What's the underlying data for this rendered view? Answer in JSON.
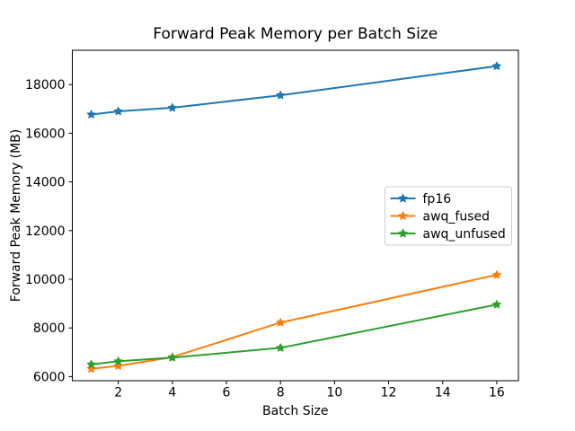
{
  "window": {
    "background": "#ffffff",
    "frame_color": "#000000",
    "text_color": "#000000"
  },
  "chart_data": {
    "type": "line",
    "title": "Forward Peak Memory per Batch Size",
    "xlabel": "Batch Size",
    "ylabel": "Forward Peak Memory (MB)",
    "x": [
      1,
      2,
      4,
      8,
      16
    ],
    "series": [
      {
        "name": "fp16",
        "color": "#1f77b4",
        "values": [
          16770,
          16900,
          17050,
          17560,
          18760
        ]
      },
      {
        "name": "awq_fused",
        "color": "#ff7f0e",
        "values": [
          6320,
          6440,
          6800,
          8220,
          10180
        ]
      },
      {
        "name": "awq_unfused",
        "color": "#2ca02c",
        "values": [
          6500,
          6630,
          6780,
          7180,
          8960
        ]
      }
    ],
    "marker": "star",
    "grid": false,
    "xticks": [
      2,
      4,
      6,
      8,
      10,
      12,
      14,
      16
    ],
    "yticks": [
      6000,
      8000,
      10000,
      12000,
      14000,
      16000,
      18000
    ],
    "xlim": [
      0.3,
      16.8
    ],
    "ylim": [
      5830,
      19410
    ],
    "legend": {
      "position": "center right",
      "entries": [
        "fp16",
        "awq_fused",
        "awq_unfused"
      ],
      "border_color": "#cccccc",
      "fill_color": "#ffffff"
    }
  }
}
